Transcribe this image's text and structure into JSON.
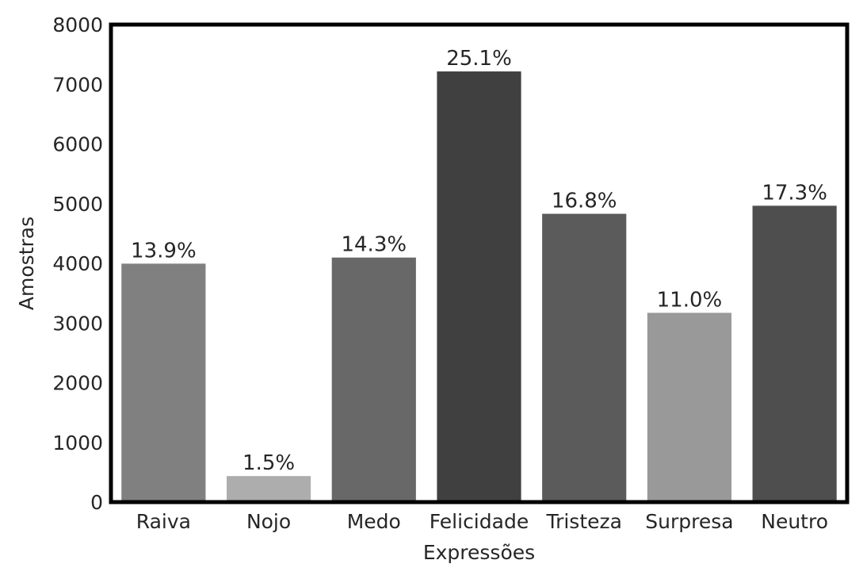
{
  "chart_data": {
    "type": "bar",
    "title": "",
    "xlabel": "Expressões",
    "ylabel": "Amostras",
    "ylim": [
      0,
      8000
    ],
    "yticks": [
      "0",
      "1000",
      "2000",
      "3000",
      "4000",
      "5000",
      "6000",
      "7000",
      "8000"
    ],
    "categories": [
      "Raiva",
      "Nojo",
      "Medo",
      "Felicidade",
      "Tristeza",
      "Surpresa",
      "Neutro"
    ],
    "values": [
      3995,
      436,
      4097,
      7215,
      4830,
      3171,
      4965
    ],
    "data_labels": [
      "13.9%",
      "1.5%",
      "14.3%",
      "25.1%",
      "16.8%",
      "11.0%",
      "17.3%"
    ],
    "colors": [
      "#808080",
      "#adadad",
      "#686868",
      "#404040",
      "#5b5b5b",
      "#999999",
      "#4e4e4e"
    ],
    "grid": false,
    "legend": "none"
  }
}
